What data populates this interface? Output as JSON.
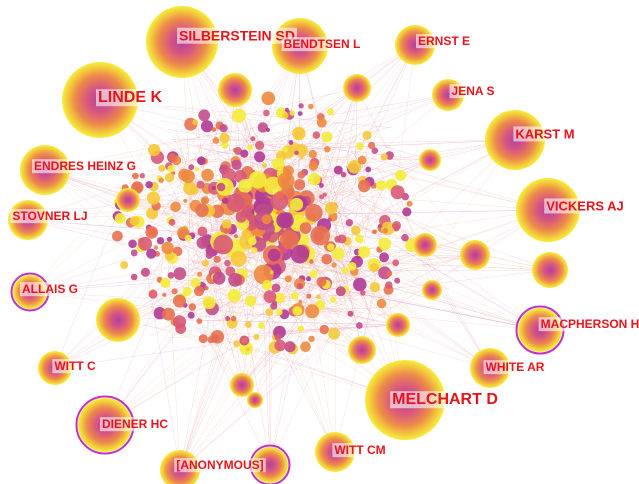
{
  "nodes": [
    {
      "label": "SILBERSTEIN SD"
    },
    {
      "label": "BENDTSEN L"
    },
    {
      "label": "ERNST E"
    },
    {
      "label": "LINDE K"
    },
    {
      "label": "JENA S"
    },
    {
      "label": "KARST M"
    },
    {
      "label": "ENDRES HEINZ G"
    },
    {
      "label": "VICKERS AJ"
    },
    {
      "label": "STOVNER LJ"
    },
    {
      "label": "ALLAIS G"
    },
    {
      "label": "MACPHERSON H"
    },
    {
      "label": "WITT C"
    },
    {
      "label": "WHITE AR"
    },
    {
      "label": "MELCHART D"
    },
    {
      "label": "DIENER HC"
    },
    {
      "label": "WITT CM"
    },
    {
      "label": "[ANONYMOUS]"
    }
  ]
}
